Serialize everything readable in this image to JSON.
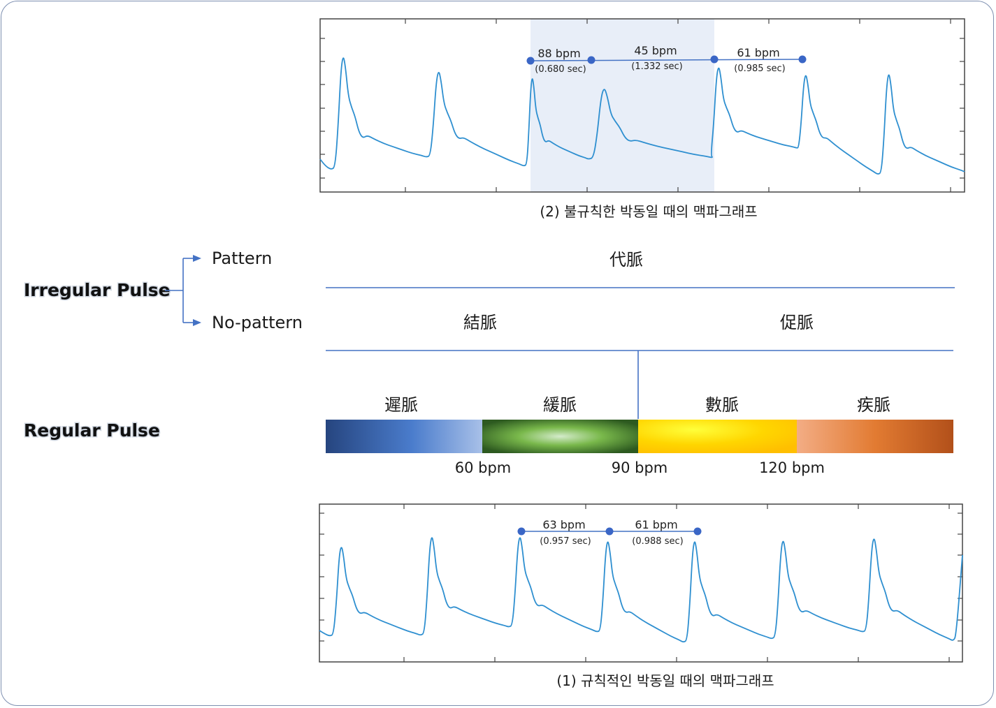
{
  "irregular": {
    "title": "Irregular Pulse",
    "branch_pattern": "Pattern",
    "branch_nopattern": "No-pattern",
    "pattern_type": "代脈",
    "nopattern_slow": "結脈",
    "nopattern_fast": "促脈"
  },
  "regular": {
    "title": "Regular Pulse",
    "categories": [
      "遲脈",
      "緩脈",
      "數脈",
      "疾脈"
    ],
    "thresholds": [
      "60 bpm",
      "90 bpm",
      "120 bpm"
    ],
    "colors": {
      "slow": [
        "#2a4f8f",
        "#4a7ccc",
        "#a9c1ea"
      ],
      "moderate": [
        "#2e5e22",
        "#6fb043",
        "#c8e6bf"
      ],
      "rapid": [
        "#ffd200",
        "#ffff33",
        "#ffc000"
      ],
      "very_rapid": [
        "#f2a77c",
        "#e07a30",
        "#b5501a"
      ]
    }
  },
  "graph_irregular": {
    "caption": "(2) 불규칙한 박동일 때의 맥파그래프",
    "annotations": [
      {
        "bpm": "88 bpm",
        "sec": "(0.680 sec)"
      },
      {
        "bpm": "45 bpm",
        "sec": "(1.332 sec)"
      },
      {
        "bpm": "61 bpm",
        "sec": "(0.985 sec)"
      }
    ]
  },
  "graph_regular": {
    "caption": "(1) 규칙적인 박동일 때의 맥파그래프",
    "annotations": [
      {
        "bpm": "63 bpm",
        "sec": "(0.957 sec)"
      },
      {
        "bpm": "61 bpm",
        "sec": "(0.988 sec)"
      }
    ]
  },
  "colors": {
    "line": "#4472c4",
    "wave": "#2e8fd0",
    "highlight": "#e8eef8",
    "marker": "#3a66c6"
  }
}
